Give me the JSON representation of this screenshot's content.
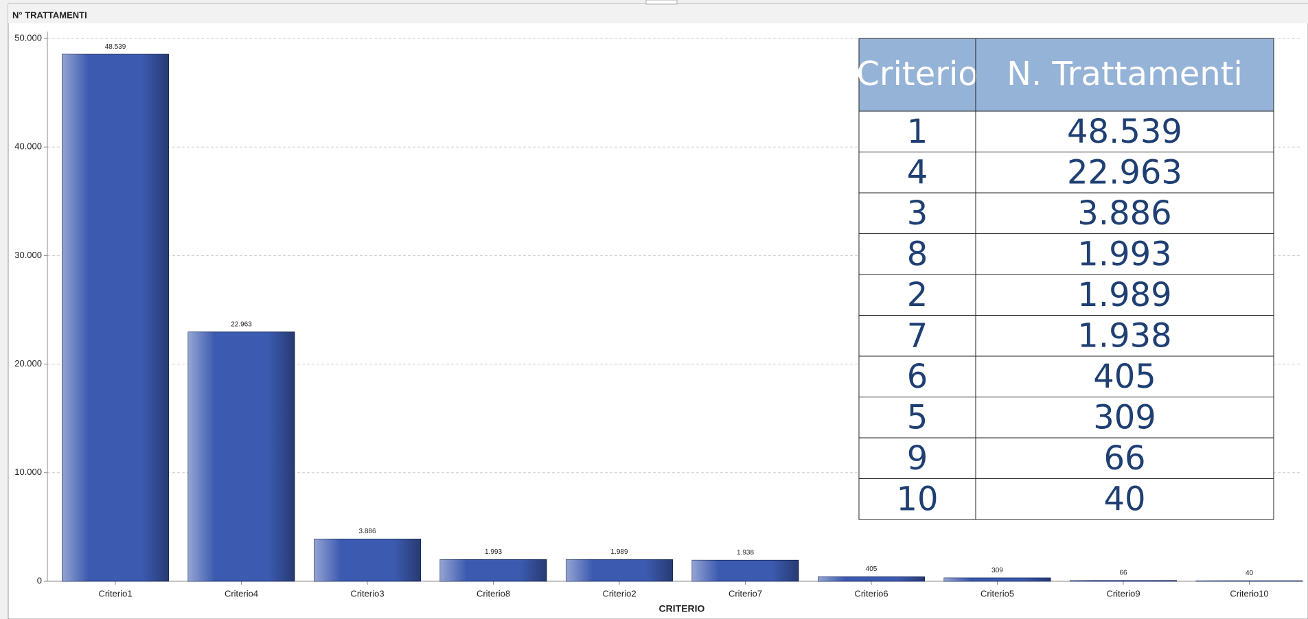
{
  "chart_data": {
    "type": "bar",
    "title": "N° TRATTAMENTI",
    "x_label": "CRITERIO",
    "categories": [
      "Criterio1",
      "Criterio4",
      "Criterio3",
      "Criterio8",
      "Criterio2",
      "Criterio7",
      "Criterio6",
      "Criterio5",
      "Criterio9",
      "Criterio10"
    ],
    "values": [
      48539,
      22963,
      3886,
      1993,
      1989,
      1938,
      405,
      309,
      66,
      40
    ],
    "value_labels": [
      "48.539",
      "22.963",
      "3.886",
      "1.993",
      "1.989",
      "1.938",
      "405",
      "309",
      "66",
      "40"
    ],
    "color": "#3c5aaf",
    "ylim": [
      0,
      50000
    ],
    "yticks": [
      0,
      {
        "value": 10000,
        "label": "10.000"
      },
      {
        "value": 20000,
        "label": "20.000"
      },
      {
        "value": 30000,
        "label": "30.000"
      },
      {
        "value": 40000,
        "label": "40.000"
      },
      {
        "value": 50000,
        "label": "50.000"
      }
    ],
    "grid": true
  },
  "table": {
    "header": [
      "Criterio",
      "N. Trattamenti"
    ],
    "rows": [
      [
        "1",
        "48.539"
      ],
      [
        "4",
        "22.963"
      ],
      [
        "3",
        "3.886"
      ],
      [
        "8",
        "1.993"
      ],
      [
        "2",
        "1.989"
      ],
      [
        "7",
        "1.938"
      ],
      [
        "6",
        "405"
      ],
      [
        "5",
        "309"
      ],
      [
        "9",
        "66"
      ],
      [
        "10",
        "40"
      ]
    ]
  }
}
